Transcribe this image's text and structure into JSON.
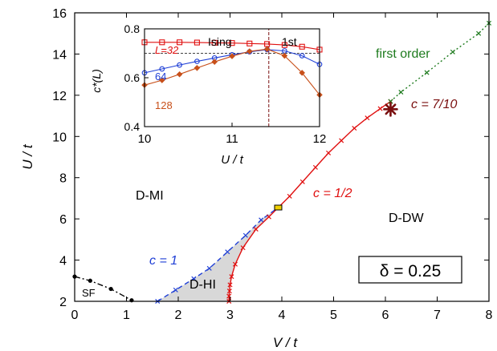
{
  "chart_data": [
    {
      "type": "line",
      "xlabel": "V / t",
      "ylabel": "U / t",
      "xlim": [
        0,
        8
      ],
      "ylim": [
        2,
        16
      ],
      "xticks": [
        "0",
        "1",
        "2",
        "3",
        "4",
        "5",
        "6",
        "7",
        "8"
      ],
      "yticks": [
        "2",
        "4",
        "6",
        "8",
        "10",
        "12",
        "14",
        "16"
      ],
      "grid": false,
      "series": [
        {
          "key": "sf",
          "color": "#000000",
          "dash": "dashdot",
          "marker": "dot",
          "points": [
            [
              0,
              3.2
            ],
            [
              0.3,
              3.0
            ],
            [
              0.7,
              2.6
            ],
            [
              1.1,
              2.05
            ]
          ]
        },
        {
          "key": "c1",
          "color": "#1f3fd6",
          "dash": "dashed",
          "marker": "x",
          "points": [
            [
              1.6,
              2.0
            ],
            [
              1.95,
              2.55
            ],
            [
              2.3,
              3.1
            ],
            [
              2.6,
              3.6
            ],
            [
              2.95,
              4.4
            ],
            [
              3.3,
              5.2
            ],
            [
              3.6,
              5.95
            ],
            [
              3.93,
              6.55
            ]
          ]
        },
        {
          "key": "c12",
          "color": "#e01010",
          "dash": "solid",
          "marker": "x",
          "points": [
            [
              2.98,
              2.0
            ],
            [
              2.98,
              2.25
            ],
            [
              2.99,
              2.5
            ],
            [
              3.0,
              2.8
            ],
            [
              3.03,
              3.2
            ],
            [
              3.1,
              3.8
            ],
            [
              3.25,
              4.6
            ],
            [
              3.5,
              5.5
            ],
            [
              3.75,
              6.1
            ],
            [
              3.93,
              6.55
            ],
            [
              4.15,
              7.1
            ],
            [
              4.4,
              7.8
            ],
            [
              4.65,
              8.5
            ],
            [
              4.9,
              9.2
            ],
            [
              5.15,
              9.8
            ],
            [
              5.4,
              10.4
            ],
            [
              5.65,
              10.9
            ],
            [
              5.9,
              11.35
            ],
            [
              6.1,
              11.7
            ]
          ]
        },
        {
          "key": "first",
          "color": "#1e7b1e",
          "dash": "dotted",
          "marker": "x",
          "points": [
            [
              6.1,
              11.7
            ],
            [
              6.3,
              12.15
            ],
            [
              6.8,
              13.1
            ],
            [
              7.3,
              14.1
            ],
            [
              7.8,
              15.0
            ],
            [
              8.0,
              15.5
            ]
          ]
        }
      ],
      "shaded_region": {
        "name": "D-HI",
        "color": "#d8d8d8",
        "points": [
          [
            1.6,
            2.0
          ],
          [
            1.95,
            2.55
          ],
          [
            2.3,
            3.1
          ],
          [
            2.6,
            3.6
          ],
          [
            2.95,
            4.4
          ],
          [
            3.3,
            5.2
          ],
          [
            3.6,
            5.95
          ],
          [
            3.93,
            6.55
          ],
          [
            3.75,
            6.1
          ],
          [
            3.5,
            5.5
          ],
          [
            3.25,
            4.6
          ],
          [
            3.1,
            3.8
          ],
          [
            3.03,
            3.2
          ],
          [
            3.0,
            2.8
          ],
          [
            2.98,
            2.0
          ]
        ]
      },
      "tricritical_point": {
        "x": 3.93,
        "y": 6.55,
        "color": "#f0d000"
      },
      "multicritical_point": {
        "x": 6.1,
        "y": 11.32,
        "color": "#7a0f0f"
      },
      "labels": {
        "first_order": "first order",
        "c_7_10": "c = 7/10",
        "c_1_2": "c = 1/2",
        "c_1": "c = 1",
        "d_mi": "D-MI",
        "d_dw": "D-DW",
        "d_hi": "D-HI",
        "sf": "SF",
        "delta": "δ = 0.25"
      }
    },
    {
      "type": "line",
      "inset": true,
      "xlabel": "U / t",
      "ylabel": "c*(L)",
      "xlim": [
        10,
        12
      ],
      "ylim": [
        0.4,
        0.8
      ],
      "xticks": [
        "10",
        "11",
        "12"
      ],
      "yticks": [
        "0.4",
        "0.6",
        "0.8"
      ],
      "vline": 11.42,
      "hline": 0.7,
      "region_labels": {
        "ising": "Ising",
        "first": "1st"
      },
      "series": [
        {
          "name": "L=32",
          "color": "#e01010",
          "marker": "square",
          "points": [
            [
              10.0,
              0.745
            ],
            [
              10.2,
              0.745
            ],
            [
              10.4,
              0.745
            ],
            [
              10.6,
              0.744
            ],
            [
              10.8,
              0.743
            ],
            [
              11.0,
              0.742
            ],
            [
              11.2,
              0.74
            ],
            [
              11.4,
              0.738
            ],
            [
              11.6,
              0.734
            ],
            [
              11.8,
              0.727
            ],
            [
              12.0,
              0.715
            ]
          ]
        },
        {
          "name": "64",
          "color": "#1f3fd6",
          "marker": "circle",
          "points": [
            [
              10.0,
              0.62
            ],
            [
              10.2,
              0.636
            ],
            [
              10.4,
              0.652
            ],
            [
              10.6,
              0.667
            ],
            [
              10.8,
              0.681
            ],
            [
              11.0,
              0.694
            ],
            [
              11.2,
              0.706
            ],
            [
              11.4,
              0.715
            ],
            [
              11.6,
              0.71
            ],
            [
              11.8,
              0.69
            ],
            [
              12.0,
              0.655
            ]
          ]
        },
        {
          "name": "128",
          "color": "#c8501a",
          "marker": "diamond",
          "points": [
            [
              10.0,
              0.57
            ],
            [
              10.2,
              0.59
            ],
            [
              10.4,
              0.614
            ],
            [
              10.6,
              0.64
            ],
            [
              10.8,
              0.665
            ],
            [
              11.0,
              0.688
            ],
            [
              11.2,
              0.708
            ],
            [
              11.4,
              0.717
            ],
            [
              11.6,
              0.69
            ],
            [
              11.8,
              0.62
            ],
            [
              12.0,
              0.53
            ]
          ]
        }
      ]
    }
  ]
}
